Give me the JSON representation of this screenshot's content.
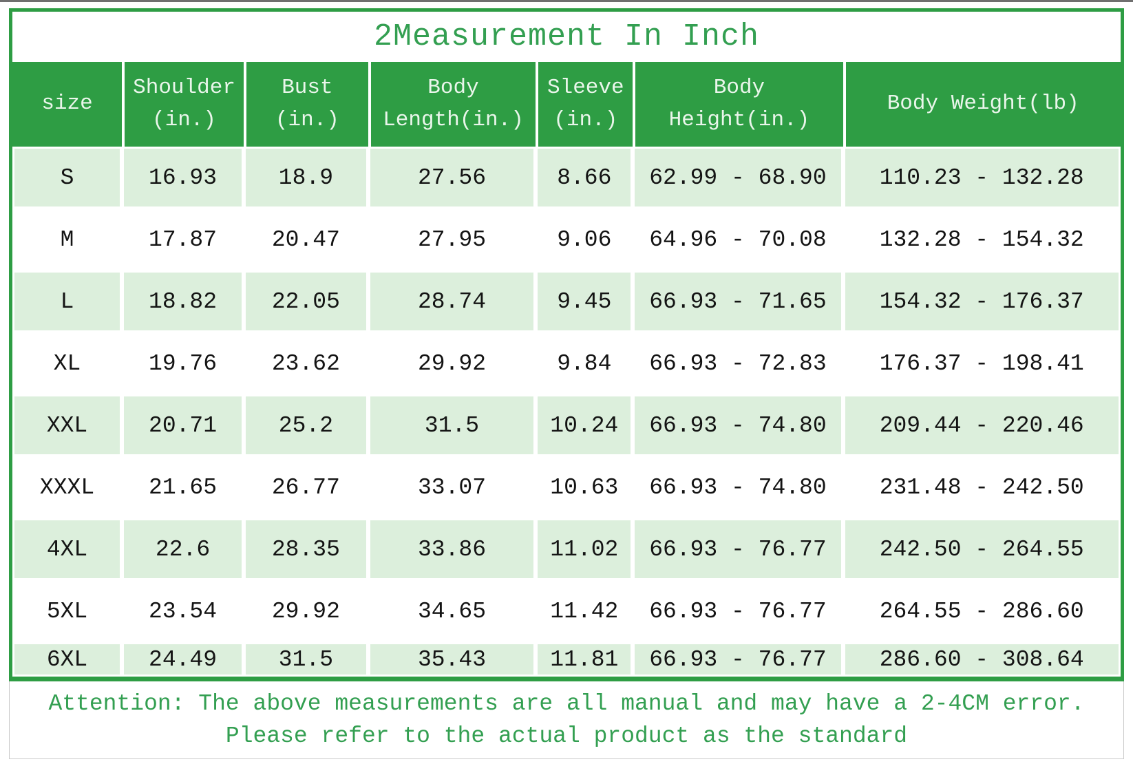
{
  "colors": {
    "header_green": "#2e9d44",
    "text_green": "#339f51",
    "stripe_green": "#dcefdc"
  },
  "chart_data": {
    "type": "table",
    "title": "2Measurement In Inch",
    "columns": [
      {
        "l1": "size",
        "l2": ""
      },
      {
        "l1": "Shoulder",
        "l2": "(in.)"
      },
      {
        "l1": "Bust",
        "l2": "(in.)"
      },
      {
        "l1": "Body",
        "l2": "Length(in.)"
      },
      {
        "l1": "Sleeve",
        "l2": "(in.)"
      },
      {
        "l1": "Body",
        "l2": "Height(in.)"
      },
      {
        "l1": "Body Weight(lb)",
        "l2": ""
      }
    ],
    "rows": [
      {
        "size": "S",
        "shoulder": "16.93",
        "bust": "18.9",
        "body_length": "27.56",
        "sleeve": "8.66",
        "body_height": "62.99 - 68.90",
        "body_weight": "110.23 - 132.28"
      },
      {
        "size": "M",
        "shoulder": "17.87",
        "bust": "20.47",
        "body_length": "27.95",
        "sleeve": "9.06",
        "body_height": "64.96 - 70.08",
        "body_weight": "132.28 - 154.32"
      },
      {
        "size": "L",
        "shoulder": "18.82",
        "bust": "22.05",
        "body_length": "28.74",
        "sleeve": "9.45",
        "body_height": "66.93 - 71.65",
        "body_weight": "154.32 - 176.37"
      },
      {
        "size": "XL",
        "shoulder": "19.76",
        "bust": "23.62",
        "body_length": "29.92",
        "sleeve": "9.84",
        "body_height": "66.93 - 72.83",
        "body_weight": "176.37 - 198.41"
      },
      {
        "size": "XXL",
        "shoulder": "20.71",
        "bust": "25.2",
        "body_length": "31.5",
        "sleeve": "10.24",
        "body_height": "66.93 - 74.80",
        "body_weight": "209.44 - 220.46"
      },
      {
        "size": "XXXL",
        "shoulder": "21.65",
        "bust": "26.77",
        "body_length": "33.07",
        "sleeve": "10.63",
        "body_height": "66.93 - 74.80",
        "body_weight": "231.48 - 242.50"
      },
      {
        "size": "4XL",
        "shoulder": "22.6",
        "bust": "28.35",
        "body_length": "33.86",
        "sleeve": "11.02",
        "body_height": "66.93 - 76.77",
        "body_weight": "242.50 - 264.55"
      },
      {
        "size": "5XL",
        "shoulder": "23.54",
        "bust": "29.92",
        "body_length": "34.65",
        "sleeve": "11.42",
        "body_height": "66.93 - 76.77",
        "body_weight": "264.55 - 286.60"
      },
      {
        "size": "6XL",
        "shoulder": "24.49",
        "bust": "31.5",
        "body_length": "35.43",
        "sleeve": "11.81",
        "body_height": "66.93 - 76.77",
        "body_weight": "286.60 - 308.64"
      }
    ],
    "notes": {
      "line1": "Attention: The above measurements are all manual and may have a 2-4CM error.",
      "line2": "Please refer to the actual product as the standard"
    }
  }
}
